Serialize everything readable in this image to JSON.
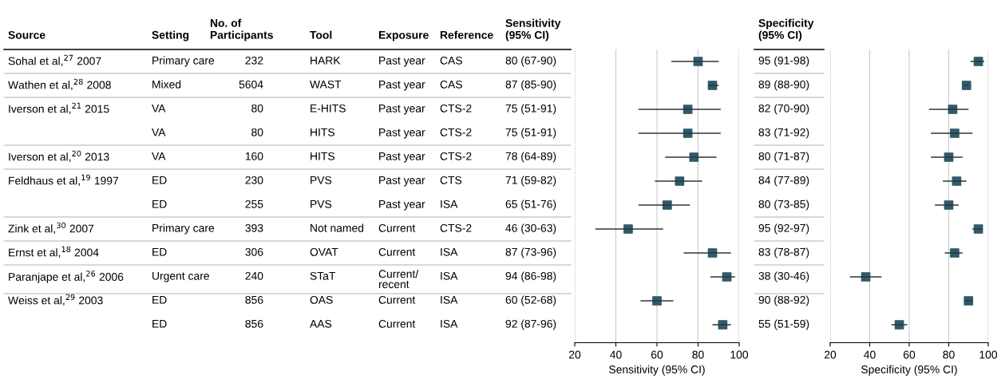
{
  "chart_data": [
    {
      "type": "other",
      "categories": [
        "Source",
        "Setting",
        "No. of\nParticipants",
        "Tool",
        "Exposure",
        "Reference"
      ],
      "cell_labels": [
        [
          "Sohal et al,$^{27}$ 2007",
          "Primary care",
          "232",
          "HARK",
          "Past year",
          "CAS"
        ],
        [
          "Wathen et al,$^{28}$ 2008",
          "Mixed",
          "5604",
          "WAST",
          "Past year",
          "CAS"
        ],
        [
          "Iverson et al,$^{21}$ 2015",
          "VA",
          "80",
          "E-HITS",
          "Past year",
          "CTS-2"
        ],
        [
          null,
          "VA",
          "80",
          "HITS",
          "Past year",
          "CTS-2"
        ],
        [
          "Iverson et al,$^{20}$ 2013",
          "VA",
          "160",
          "HITS",
          "Past year",
          "CTS-2"
        ],
        [
          "Feldhaus et al,$^{19}$ 1997",
          "ED",
          "230",
          "PVS",
          "Past year",
          "CTS"
        ],
        [
          null,
          "ED",
          "255",
          "PVS",
          "Past year",
          "ISA"
        ],
        [
          "Zink et al,$^{30}$ 2007",
          "Primary care",
          "393",
          "Not named",
          "Current",
          "CTS-2"
        ],
        [
          "Ernst et al,$^{18}$ 2004",
          "ED",
          "306",
          "OVAT",
          "Current",
          "ISA"
        ],
        [
          "Paranjape et al,$^{26}$ 2006",
          "Urgent care",
          "240",
          "STaT",
          "Current/\nrecent",
          "ISA"
        ],
        [
          "Weiss et al,$^{29}$ 2003",
          "ED",
          "856",
          "OAS",
          "Current",
          "ISA"
        ],
        [
          null,
          "ED",
          "856",
          "AAS",
          "Current",
          "ISA"
        ]
      ]
    },
    {
      "type": "scatter",
      "orientation": "horizontal",
      "title": "Sensitivity\n(95% CI)",
      "xlabel": "Sensitivity (95% CI)",
      "categories": [
        null,
        null,
        null,
        null,
        null,
        null,
        null,
        null,
        null,
        null,
        null,
        null
      ],
      "series": [
        {
          "color": "#2e5b6b",
          "values": [
            80,
            87,
            75,
            75,
            78,
            71,
            65,
            46,
            87,
            94,
            60,
            92
          ],
          "errors": [
            [
              67,
              90
            ],
            [
              85,
              90
            ],
            [
              51,
              91
            ],
            [
              51,
              91
            ],
            [
              64,
              89
            ],
            [
              59,
              82
            ],
            [
              51,
              76
            ],
            [
              30,
              63
            ],
            [
              73,
              96
            ],
            [
              86,
              98
            ],
            [
              52,
              68
            ],
            [
              87,
              96
            ]
          ],
          "value_labels": [
            "80 (67-90)",
            "87 (85-90)",
            "75 (51-91)",
            "75 (51-91)",
            "78 (64-89)",
            "71 (59-82)",
            "65 (51-76)",
            "46 (30-63)",
            "87 (73-96)",
            "94 (86-98)",
            "60 (52-68)",
            "92 (87-96)"
          ]
        }
      ],
      "xlim": [
        20,
        100
      ],
      "xticks": [
        20,
        40,
        60,
        80,
        100
      ],
      "grid": "x",
      "marker": "square",
      "tick_labels": "x"
    },
    {
      "type": "scatter",
      "orientation": "horizontal",
      "title": "Specificity\n(95% CI)",
      "xlabel": "Specificity (95% CI)",
      "categories": [
        null,
        null,
        null,
        null,
        null,
        null,
        null,
        null,
        null,
        null,
        null,
        null
      ],
      "series": [
        {
          "color": "#2e5b6b",
          "values": [
            95,
            89,
            82,
            83,
            80,
            84,
            80,
            95,
            83,
            38,
            90,
            55
          ],
          "errors": [
            [
              91,
              98
            ],
            [
              88,
              90
            ],
            [
              70,
              90
            ],
            [
              71,
              92
            ],
            [
              71,
              87
            ],
            [
              77,
              89
            ],
            [
              73,
              85
            ],
            [
              92,
              97
            ],
            [
              78,
              87
            ],
            [
              30,
              46
            ],
            [
              88,
              92
            ],
            [
              51,
              59
            ]
          ],
          "value_labels": [
            "95 (91-98)",
            "89 (88-90)",
            "82 (70-90)",
            "83 (71-92)",
            "80 (71-87)",
            "84 (77-89)",
            "80 (73-85)",
            "95 (92-97)",
            "83 (78-87)",
            "38 (30-46)",
            "90 (88-92)",
            "55 (51-59)"
          ]
        }
      ],
      "xlim": [
        20,
        100
      ],
      "xticks": [
        20,
        40,
        60,
        80,
        100
      ],
      "grid": "x",
      "marker": "square",
      "tick_labels": "x"
    }
  ]
}
